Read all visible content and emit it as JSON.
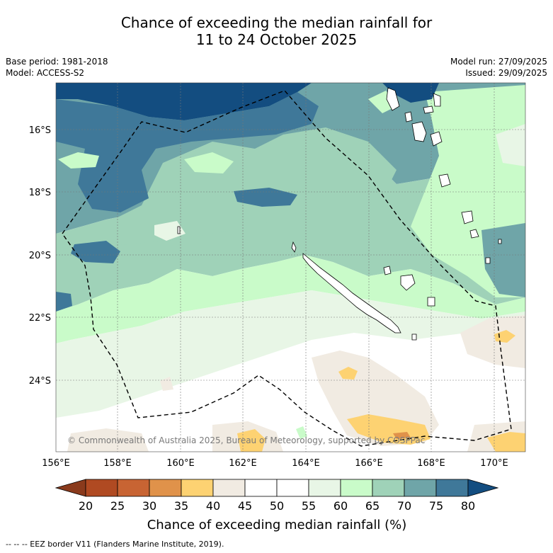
{
  "title_line1": "Chance of exceeding the median rainfall for",
  "title_line2": "11 to 24 October 2025",
  "meta_left": [
    "Base period: 1981-2018",
    "Model: ACCESS-S2"
  ],
  "meta_right": [
    "Model run: 27/09/2025",
    "Issued: 29/09/2025"
  ],
  "lat_labels": [
    "16°S",
    "18°S",
    "20°S",
    "22°S",
    "24°S"
  ],
  "lon_labels": [
    "156°E",
    "158°E",
    "160°E",
    "162°E",
    "164°E",
    "166°E",
    "168°E",
    "170°E"
  ],
  "copyright": "© Commonwealth of Australia 2025, Bureau of Meteorology, supported by COSPPac",
  "colorbar": {
    "title": "Chance of exceeding median rainfall (%)",
    "ticks": [
      "20",
      "25",
      "30",
      "35",
      "40",
      "45",
      "50",
      "55",
      "60",
      "65",
      "70",
      "75",
      "80"
    ],
    "colors": [
      "#8a3a1c",
      "#b04a22",
      "#c86433",
      "#e0924a",
      "#fdd272",
      "#f1ebe2",
      "#ffffff",
      "#ffffff",
      "#e8f6e6",
      "#c9fbc9",
      "#9fd2b8",
      "#6fa5a8",
      "#3f7899",
      "#134d80"
    ]
  },
  "footnote": "--  --  -- EEZ border V11 (Flanders Marine Institute, 2019).",
  "colors": {
    "dark_blue": "#134d80",
    "blue": "#3f7899",
    "teal": "#6fa5a8",
    "green_teal": "#9fd2b8",
    "light_green": "#c9fbc9",
    "pale_green": "#e8f6e6",
    "beige": "#f1ebe2",
    "yellow": "#fdd272",
    "orange": "#e0924a"
  }
}
